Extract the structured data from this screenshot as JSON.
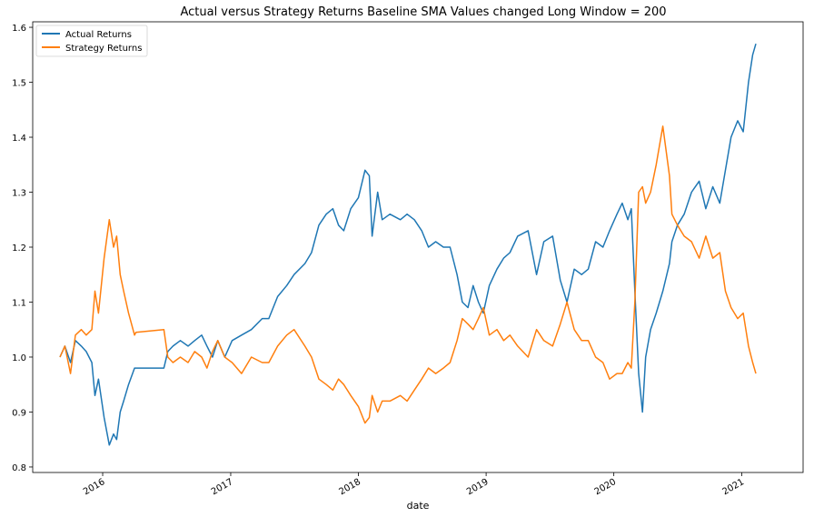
{
  "chart_data": {
    "type": "line",
    "title": "Actual versus Strategy Returns Baseline SMA Values changed Long Window = 200",
    "xlabel": "date",
    "ylabel": "",
    "x_ticks": [
      "2016",
      "2017",
      "2018",
      "2019",
      "2020",
      "2021"
    ],
    "y_ticks": [
      "0.8",
      "0.9",
      "1.0",
      "1.1",
      "1.2",
      "1.3",
      "1.4",
      "1.5",
      "1.6"
    ],
    "ylim": [
      0.79,
      1.61
    ],
    "xlim": [
      "2015-06-15",
      "2021-06-25"
    ],
    "grid": false,
    "legend_position": "top-left",
    "series": [
      {
        "name": "Actual Returns",
        "color": "#1f77b4",
        "points": [
          [
            "2015-09-01",
            1.0
          ],
          [
            "2015-09-15",
            1.02
          ],
          [
            "2015-10-01",
            0.99
          ],
          [
            "2015-10-15",
            1.03
          ],
          [
            "2015-11-01",
            1.02
          ],
          [
            "2015-11-15",
            1.01
          ],
          [
            "2015-12-01",
            0.99
          ],
          [
            "2015-12-10",
            0.93
          ],
          [
            "2015-12-20",
            0.96
          ],
          [
            "2016-01-05",
            0.89
          ],
          [
            "2016-01-20",
            0.84
          ],
          [
            "2016-02-01",
            0.86
          ],
          [
            "2016-02-10",
            0.85
          ],
          [
            "2016-02-20",
            0.9
          ],
          [
            "2016-03-01",
            0.92
          ],
          [
            "2016-03-15",
            0.95
          ],
          [
            "2016-04-01",
            0.98
          ],
          [
            "2016-04-05",
            0.98
          ],
          [
            "2016-06-24",
            0.98
          ],
          [
            "2016-07-05",
            1.01
          ],
          [
            "2016-07-20",
            1.02
          ],
          [
            "2016-08-10",
            1.03
          ],
          [
            "2016-09-01",
            1.02
          ],
          [
            "2016-09-20",
            1.03
          ],
          [
            "2016-10-10",
            1.04
          ],
          [
            "2016-10-25",
            1.02
          ],
          [
            "2016-11-10",
            1.0
          ],
          [
            "2016-11-25",
            1.03
          ],
          [
            "2016-12-15",
            1.0
          ],
          [
            "2017-01-05",
            1.03
          ],
          [
            "2017-02-01",
            1.04
          ],
          [
            "2017-03-01",
            1.05
          ],
          [
            "2017-04-01",
            1.07
          ],
          [
            "2017-04-20",
            1.07
          ],
          [
            "2017-05-15",
            1.11
          ],
          [
            "2017-06-10",
            1.13
          ],
          [
            "2017-07-01",
            1.15
          ],
          [
            "2017-08-01",
            1.17
          ],
          [
            "2017-08-20",
            1.19
          ],
          [
            "2017-09-10",
            1.24
          ],
          [
            "2017-10-01",
            1.26
          ],
          [
            "2017-10-20",
            1.27
          ],
          [
            "2017-11-05",
            1.24
          ],
          [
            "2017-11-20",
            1.23
          ],
          [
            "2017-12-10",
            1.27
          ],
          [
            "2018-01-01",
            1.29
          ],
          [
            "2018-01-20",
            1.34
          ],
          [
            "2018-02-01",
            1.33
          ],
          [
            "2018-02-09",
            1.22
          ],
          [
            "2018-02-25",
            1.3
          ],
          [
            "2018-03-10",
            1.25
          ],
          [
            "2018-04-01",
            1.26
          ],
          [
            "2018-05-01",
            1.25
          ],
          [
            "2018-05-20",
            1.26
          ],
          [
            "2018-06-10",
            1.25
          ],
          [
            "2018-07-01",
            1.23
          ],
          [
            "2018-07-20",
            1.2
          ],
          [
            "2018-08-10",
            1.21
          ],
          [
            "2018-09-01",
            1.2
          ],
          [
            "2018-09-20",
            1.2
          ],
          [
            "2018-10-10",
            1.15
          ],
          [
            "2018-10-25",
            1.1
          ],
          [
            "2018-11-10",
            1.09
          ],
          [
            "2018-11-25",
            1.13
          ],
          [
            "2018-12-10",
            1.1
          ],
          [
            "2018-12-24",
            1.08
          ],
          [
            "2019-01-10",
            1.13
          ],
          [
            "2019-02-01",
            1.16
          ],
          [
            "2019-02-20",
            1.18
          ],
          [
            "2019-03-10",
            1.19
          ],
          [
            "2019-04-01",
            1.22
          ],
          [
            "2019-05-01",
            1.23
          ],
          [
            "2019-05-25",
            1.15
          ],
          [
            "2019-06-15",
            1.21
          ],
          [
            "2019-07-10",
            1.22
          ],
          [
            "2019-08-01",
            1.14
          ],
          [
            "2019-08-20",
            1.1
          ],
          [
            "2019-09-10",
            1.16
          ],
          [
            "2019-10-01",
            1.15
          ],
          [
            "2019-10-20",
            1.16
          ],
          [
            "2019-11-10",
            1.21
          ],
          [
            "2019-12-01",
            1.2
          ],
          [
            "2019-12-20",
            1.23
          ],
          [
            "2020-01-10",
            1.26
          ],
          [
            "2020-01-25",
            1.28
          ],
          [
            "2020-02-10",
            1.25
          ],
          [
            "2020-02-20",
            1.27
          ],
          [
            "2020-03-01",
            1.12
          ],
          [
            "2020-03-12",
            0.97
          ],
          [
            "2020-03-23",
            0.9
          ],
          [
            "2020-04-01",
            1.0
          ],
          [
            "2020-04-15",
            1.05
          ],
          [
            "2020-05-01",
            1.08
          ],
          [
            "2020-05-20",
            1.12
          ],
          [
            "2020-06-08",
            1.17
          ],
          [
            "2020-06-15",
            1.21
          ],
          [
            "2020-07-01",
            1.24
          ],
          [
            "2020-07-20",
            1.26
          ],
          [
            "2020-08-10",
            1.3
          ],
          [
            "2020-09-01",
            1.32
          ],
          [
            "2020-09-20",
            1.27
          ],
          [
            "2020-10-10",
            1.31
          ],
          [
            "2020-10-30",
            1.28
          ],
          [
            "2020-11-15",
            1.34
          ],
          [
            "2020-12-01",
            1.4
          ],
          [
            "2020-12-20",
            1.43
          ],
          [
            "2021-01-05",
            1.41
          ],
          [
            "2021-01-20",
            1.5
          ],
          [
            "2021-02-01",
            1.55
          ],
          [
            "2021-02-10",
            1.57
          ]
        ]
      },
      {
        "name": "Strategy Returns",
        "color": "#ff7f0e",
        "points": [
          [
            "2015-09-01",
            1.0
          ],
          [
            "2015-09-15",
            1.02
          ],
          [
            "2015-10-01",
            0.97
          ],
          [
            "2015-10-15",
            1.04
          ],
          [
            "2015-11-01",
            1.05
          ],
          [
            "2015-11-15",
            1.04
          ],
          [
            "2015-12-01",
            1.05
          ],
          [
            "2015-12-10",
            1.12
          ],
          [
            "2015-12-20",
            1.08
          ],
          [
            "2016-01-05",
            1.18
          ],
          [
            "2016-01-20",
            1.25
          ],
          [
            "2016-02-01",
            1.2
          ],
          [
            "2016-02-10",
            1.22
          ],
          [
            "2016-02-20",
            1.15
          ],
          [
            "2016-03-01",
            1.12
          ],
          [
            "2016-03-15",
            1.08
          ],
          [
            "2016-04-01",
            1.04
          ],
          [
            "2016-04-05",
            1.045
          ],
          [
            "2016-06-24",
            1.05
          ],
          [
            "2016-07-05",
            1.0
          ],
          [
            "2016-07-20",
            0.99
          ],
          [
            "2016-08-10",
            1.0
          ],
          [
            "2016-09-01",
            0.99
          ],
          [
            "2016-09-20",
            1.01
          ],
          [
            "2016-10-10",
            1.0
          ],
          [
            "2016-10-25",
            0.98
          ],
          [
            "2016-11-10",
            1.01
          ],
          [
            "2016-11-25",
            1.03
          ],
          [
            "2016-12-15",
            1.0
          ],
          [
            "2017-01-05",
            0.99
          ],
          [
            "2017-02-01",
            0.97
          ],
          [
            "2017-03-01",
            1.0
          ],
          [
            "2017-04-01",
            0.99
          ],
          [
            "2017-04-20",
            0.99
          ],
          [
            "2017-05-15",
            1.02
          ],
          [
            "2017-06-10",
            1.04
          ],
          [
            "2017-07-01",
            1.05
          ],
          [
            "2017-08-01",
            1.02
          ],
          [
            "2017-08-20",
            1.0
          ],
          [
            "2017-09-10",
            0.96
          ],
          [
            "2017-10-01",
            0.95
          ],
          [
            "2017-10-20",
            0.94
          ],
          [
            "2017-11-05",
            0.96
          ],
          [
            "2017-11-20",
            0.95
          ],
          [
            "2017-12-10",
            0.93
          ],
          [
            "2018-01-01",
            0.91
          ],
          [
            "2018-01-20",
            0.88
          ],
          [
            "2018-02-01",
            0.89
          ],
          [
            "2018-02-09",
            0.93
          ],
          [
            "2018-02-25",
            0.9
          ],
          [
            "2018-03-10",
            0.92
          ],
          [
            "2018-04-01",
            0.92
          ],
          [
            "2018-05-01",
            0.93
          ],
          [
            "2018-05-20",
            0.92
          ],
          [
            "2018-06-10",
            0.94
          ],
          [
            "2018-07-01",
            0.96
          ],
          [
            "2018-07-20",
            0.98
          ],
          [
            "2018-08-10",
            0.97
          ],
          [
            "2018-09-01",
            0.98
          ],
          [
            "2018-09-20",
            0.99
          ],
          [
            "2018-10-10",
            1.03
          ],
          [
            "2018-10-25",
            1.07
          ],
          [
            "2018-11-10",
            1.06
          ],
          [
            "2018-11-25",
            1.05
          ],
          [
            "2018-12-10",
            1.07
          ],
          [
            "2018-12-24",
            1.09
          ],
          [
            "2019-01-10",
            1.04
          ],
          [
            "2019-02-01",
            1.05
          ],
          [
            "2019-02-20",
            1.03
          ],
          [
            "2019-03-10",
            1.04
          ],
          [
            "2019-04-01",
            1.02
          ],
          [
            "2019-05-01",
            1.0
          ],
          [
            "2019-05-25",
            1.05
          ],
          [
            "2019-06-15",
            1.03
          ],
          [
            "2019-07-10",
            1.02
          ],
          [
            "2019-08-01",
            1.06
          ],
          [
            "2019-08-20",
            1.1
          ],
          [
            "2019-09-10",
            1.05
          ],
          [
            "2019-10-01",
            1.03
          ],
          [
            "2019-10-20",
            1.03
          ],
          [
            "2019-11-10",
            1.0
          ],
          [
            "2019-12-01",
            0.99
          ],
          [
            "2019-12-20",
            0.96
          ],
          [
            "2020-01-10",
            0.97
          ],
          [
            "2020-01-25",
            0.97
          ],
          [
            "2020-02-10",
            0.99
          ],
          [
            "2020-02-20",
            0.98
          ],
          [
            "2020-03-01",
            1.1
          ],
          [
            "2020-03-12",
            1.3
          ],
          [
            "2020-03-23",
            1.31
          ],
          [
            "2020-04-01",
            1.28
          ],
          [
            "2020-04-15",
            1.3
          ],
          [
            "2020-05-01",
            1.35
          ],
          [
            "2020-05-20",
            1.42
          ],
          [
            "2020-06-08",
            1.33
          ],
          [
            "2020-06-15",
            1.26
          ],
          [
            "2020-07-01",
            1.24
          ],
          [
            "2020-07-20",
            1.22
          ],
          [
            "2020-08-10",
            1.21
          ],
          [
            "2020-09-01",
            1.18
          ],
          [
            "2020-09-20",
            1.22
          ],
          [
            "2020-10-10",
            1.18
          ],
          [
            "2020-10-30",
            1.19
          ],
          [
            "2020-11-15",
            1.12
          ],
          [
            "2020-12-01",
            1.09
          ],
          [
            "2020-12-20",
            1.07
          ],
          [
            "2021-01-05",
            1.08
          ],
          [
            "2021-01-20",
            1.02
          ],
          [
            "2021-02-01",
            0.99
          ],
          [
            "2021-02-10",
            0.97
          ]
        ]
      }
    ]
  }
}
